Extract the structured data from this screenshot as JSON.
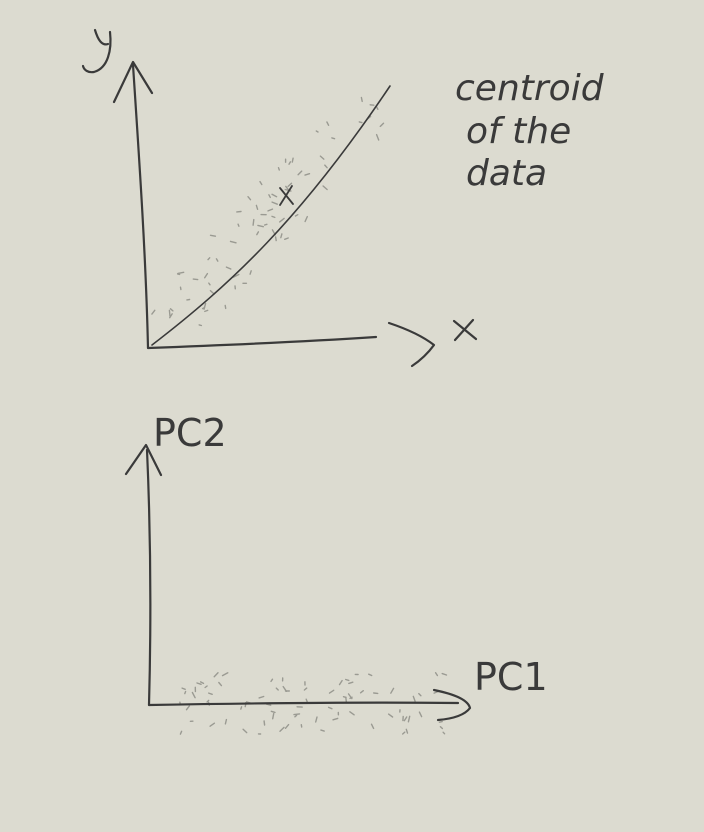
{
  "top_plot": {
    "x_label": "x",
    "y_label": "y",
    "annotation": [
      "centroid",
      "of the",
      "data"
    ],
    "centroid_mark": "x"
  },
  "bottom_plot": {
    "x_label": "PC1",
    "y_label": "PC2"
  },
  "colors": {
    "background": "#dcdbd0",
    "ink": "#3a3a3a",
    "scatter": "#9a9a92"
  }
}
